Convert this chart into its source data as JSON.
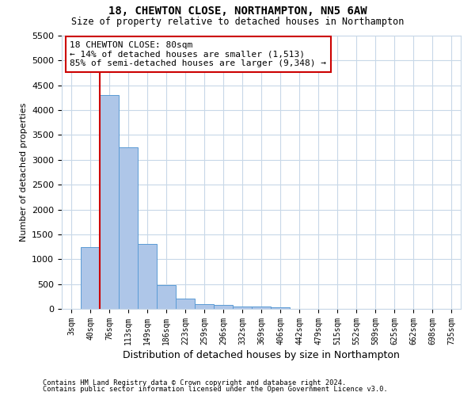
{
  "title": "18, CHEWTON CLOSE, NORTHAMPTON, NN5 6AW",
  "subtitle": "Size of property relative to detached houses in Northampton",
  "xlabel": "Distribution of detached houses by size in Northampton",
  "ylabel": "Number of detached properties",
  "bar_color": "#aec6e8",
  "bar_edge_color": "#5b9bd5",
  "background_color": "#ffffff",
  "grid_color": "#c8d8e8",
  "categories": [
    "3sqm",
    "40sqm",
    "76sqm",
    "113sqm",
    "149sqm",
    "186sqm",
    "223sqm",
    "259sqm",
    "296sqm",
    "332sqm",
    "369sqm",
    "406sqm",
    "442sqm",
    "479sqm",
    "515sqm",
    "552sqm",
    "589sqm",
    "625sqm",
    "662sqm",
    "698sqm",
    "735sqm"
  ],
  "values": [
    0,
    1250,
    4300,
    3250,
    1300,
    475,
    200,
    100,
    75,
    50,
    40,
    30,
    0,
    0,
    0,
    0,
    0,
    0,
    0,
    0,
    0
  ],
  "ylim": [
    0,
    5500
  ],
  "yticks": [
    0,
    500,
    1000,
    1500,
    2000,
    2500,
    3000,
    3500,
    4000,
    4500,
    5000,
    5500
  ],
  "property_label": "18 CHEWTON CLOSE: 80sqm",
  "annotation_line1": "← 14% of detached houses are smaller (1,513)",
  "annotation_line2": "85% of semi-detached houses are larger (9,348) →",
  "vline_color": "#cc0000",
  "annotation_box_edge": "#cc0000",
  "vline_index": 1.5,
  "footer1": "Contains HM Land Registry data © Crown copyright and database right 2024.",
  "footer2": "Contains public sector information licensed under the Open Government Licence v3.0."
}
